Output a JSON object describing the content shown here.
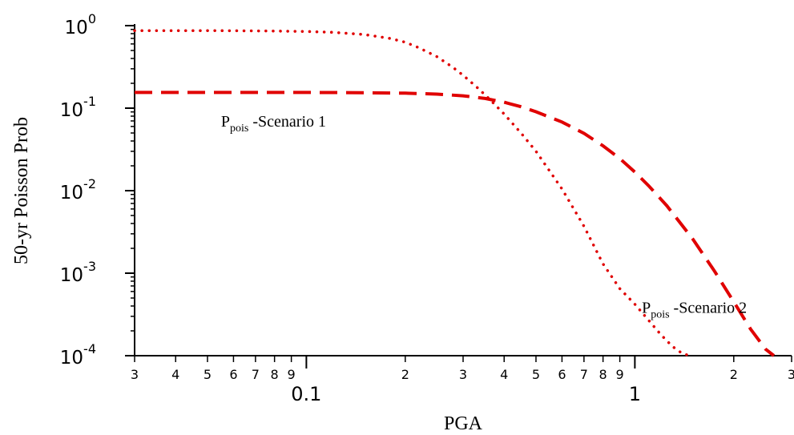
{
  "chart_data": {
    "type": "line",
    "title": "",
    "xlabel": "PGA",
    "ylabel": "50-yr Poisson Prob",
    "xscale": "log",
    "yscale": "log",
    "xlim": [
      0.03,
      3.0
    ],
    "ylim": [
      0.0001,
      1.0
    ],
    "grid": false,
    "x_tick_labels": [
      {
        "x": 0.03,
        "label": "3"
      },
      {
        "x": 0.04,
        "label": "4"
      },
      {
        "x": 0.05,
        "label": "5"
      },
      {
        "x": 0.06,
        "label": "6"
      },
      {
        "x": 0.07,
        "label": "7"
      },
      {
        "x": 0.08,
        "label": "8"
      },
      {
        "x": 0.09,
        "label": "9"
      },
      {
        "x": 0.2,
        "label": "2"
      },
      {
        "x": 0.3,
        "label": "3"
      },
      {
        "x": 0.4,
        "label": "4"
      },
      {
        "x": 0.5,
        "label": "5"
      },
      {
        "x": 0.6,
        "label": "6"
      },
      {
        "x": 0.7,
        "label": "7"
      },
      {
        "x": 0.8,
        "label": "8"
      },
      {
        "x": 0.9,
        "label": "9"
      },
      {
        "x": 2.0,
        "label": "2"
      },
      {
        "x": 3.0,
        "label": "3"
      }
    ],
    "x_decade_labels": [
      {
        "x": 0.1,
        "label": "0.1"
      },
      {
        "x": 1.0,
        "label": "1"
      }
    ],
    "y_tick_labels": [
      {
        "y": 1.0,
        "base": "10",
        "exp": "0"
      },
      {
        "y": 0.1,
        "base": "10",
        "exp": "-1"
      },
      {
        "y": 0.01,
        "base": "10",
        "exp": "-2"
      },
      {
        "y": 0.001,
        "base": "10",
        "exp": "-3"
      },
      {
        "y": 0.0001,
        "base": "10",
        "exp": "-4"
      }
    ],
    "series": [
      {
        "style": "dashed",
        "color": "#e00000",
        "x": [
          0.03,
          0.05,
          0.08,
          0.1,
          0.15,
          0.2,
          0.25,
          0.3,
          0.35,
          0.4,
          0.45,
          0.5,
          0.6,
          0.7,
          0.8,
          0.9,
          1.0,
          1.1,
          1.25,
          1.5,
          1.75,
          2.0,
          2.25,
          2.5,
          2.65
        ],
        "y": [
          0.155,
          0.155,
          0.155,
          0.155,
          0.154,
          0.152,
          0.148,
          0.141,
          0.131,
          0.118,
          0.104,
          0.0905,
          0.068,
          0.0495,
          0.035,
          0.0245,
          0.0168,
          0.0115,
          0.0066,
          0.0026,
          0.00105,
          0.00045,
          0.00021,
          0.00012,
          0.0001
        ]
      },
      {
        "style": "dotted",
        "color": "#e00000",
        "x": [
          0.03,
          0.05,
          0.08,
          0.1,
          0.12,
          0.15,
          0.18,
          0.2,
          0.22,
          0.25,
          0.28,
          0.3,
          0.33,
          0.36,
          0.4,
          0.45,
          0.5,
          0.6,
          0.7,
          0.8,
          0.9,
          1.0,
          1.1,
          1.2,
          1.3,
          1.4,
          1.48
        ],
        "y": [
          0.87,
          0.87,
          0.86,
          0.85,
          0.83,
          0.78,
          0.7,
          0.63,
          0.54,
          0.42,
          0.31,
          0.25,
          0.18,
          0.13,
          0.085,
          0.05,
          0.03,
          0.0105,
          0.0037,
          0.0013,
          0.00065,
          0.00042,
          0.00027,
          0.00018,
          0.00013,
          0.000105,
          0.0001
        ]
      }
    ],
    "annotations": [
      {
        "main": "P",
        "sub": "pois",
        "rest": " -Scenario 1",
        "x": 0.055,
        "y": 0.06
      },
      {
        "main": "P",
        "sub": "pois",
        "rest": " -Scenario 2",
        "x": 1.05,
        "y": 0.00033
      }
    ]
  }
}
